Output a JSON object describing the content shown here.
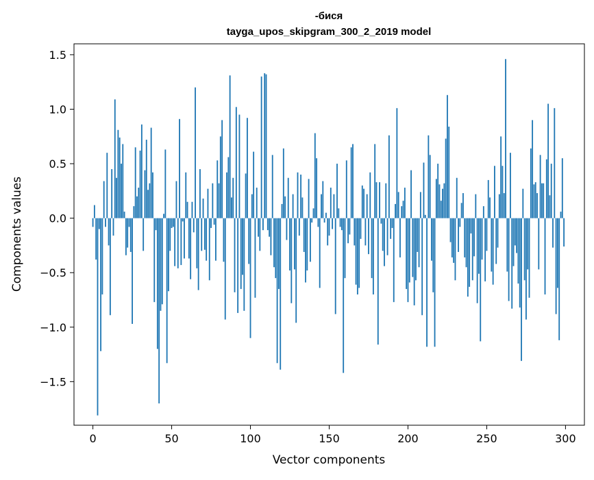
{
  "chart_data": {
    "type": "bar",
    "title_line1": "-бися",
    "title_line2": "tayga_upos_skipgram_300_2_2019 model",
    "xlabel": "Vector components",
    "ylabel": "Components values",
    "xlim": [
      -12,
      312
    ],
    "ylim": [
      -1.9,
      1.6
    ],
    "x_ticks": [
      0,
      50,
      100,
      150,
      200,
      250,
      300
    ],
    "x_tick_labels": [
      "0",
      "50",
      "100",
      "150",
      "200",
      "250",
      "300"
    ],
    "y_ticks": [
      -1.5,
      -1.0,
      -0.5,
      0.0,
      0.5,
      1.0,
      1.5
    ],
    "y_tick_labels": [
      "−1.5",
      "−1.0",
      "−0.5",
      "0.0",
      "0.5",
      "1.0",
      "1.5"
    ],
    "bar_color": "#1f77b4",
    "values": [
      -0.08,
      0.12,
      -0.38,
      -1.81,
      -0.1,
      -1.22,
      -0.7,
      0.34,
      -0.08,
      0.6,
      -0.25,
      -0.89,
      0.45,
      -0.16,
      1.09,
      0.37,
      0.81,
      0.74,
      0.5,
      0.68,
      0.06,
      -0.34,
      -0.27,
      -0.08,
      -0.31,
      -0.97,
      0.11,
      0.65,
      0.2,
      0.28,
      0.62,
      0.86,
      -0.3,
      0.44,
      0.72,
      0.26,
      0.32,
      0.83,
      0.42,
      -0.77,
      -0.11,
      -1.2,
      -1.7,
      -0.85,
      -0.79,
      0.04,
      0.63,
      -1.33,
      -0.67,
      -0.3,
      -0.09,
      -0.08,
      -0.44,
      0.34,
      -0.46,
      0.91,
      -0.43,
      -0.03,
      -0.37,
      0.42,
      0.15,
      -0.37,
      -0.56,
      0.15,
      -0.13,
      1.2,
      -0.46,
      -0.66,
      0.45,
      -0.3,
      0.18,
      -0.29,
      -0.39,
      0.27,
      -0.57,
      -0.09,
      0.32,
      -0.06,
      -0.39,
      0.53,
      0.32,
      0.75,
      0.9,
      -0.4,
      -0.93,
      0.42,
      0.56,
      1.31,
      0.19,
      0.37,
      -0.68,
      1.02,
      -0.87,
      0.95,
      -0.65,
      -0.52,
      -0.85,
      0.41,
      0.92,
      -0.42,
      -1.1,
      0.22,
      0.61,
      -0.73,
      0.28,
      -0.17,
      -0.3,
      1.3,
      -0.11,
      1.33,
      1.32,
      -0.11,
      -0.17,
      -0.34,
      0.58,
      -0.45,
      -0.55,
      -1.33,
      -0.65,
      -1.39,
      0.13,
      0.64,
      0.2,
      -0.2,
      0.37,
      -0.48,
      -0.78,
      0.22,
      -0.47,
      -0.96,
      0.42,
      -0.16,
      0.4,
      0.19,
      -0.31,
      -0.59,
      -0.48,
      0.36,
      -0.4,
      -0.04,
      0.09,
      0.78,
      0.55,
      -0.08,
      -0.64,
      0.22,
      0.34,
      -0.04,
      0.05,
      -0.25,
      -0.16,
      0.28,
      -0.1,
      0.22,
      -0.88,
      0.5,
      0.09,
      -0.08,
      -0.11,
      -1.42,
      -0.55,
      0.53,
      -0.23,
      -0.15,
      0.65,
      0.68,
      -0.25,
      -0.61,
      -0.7,
      -0.64,
      -0.19,
      0.3,
      0.27,
      -0.25,
      0.22,
      -0.33,
      0.42,
      -0.55,
      -0.7,
      0.68,
      0.33,
      -1.16,
      0.33,
      -0.05,
      -0.3,
      -0.44,
      0.32,
      -0.34,
      0.76,
      -0.19,
      -0.09,
      -0.77,
      0.13,
      1.01,
      0.24,
      -0.36,
      0.11,
      0.16,
      0.28,
      -0.65,
      -0.77,
      -0.59,
      0.44,
      -0.54,
      -0.8,
      -0.57,
      -0.31,
      -0.45,
      0.24,
      -0.89,
      0.51,
      0.03,
      -1.18,
      0.76,
      0.58,
      -0.39,
      -0.68,
      -1.18,
      0.36,
      0.5,
      0.31,
      0.16,
      0.27,
      0.32,
      0.73,
      1.13,
      0.84,
      -0.22,
      -0.36,
      -0.41,
      -0.57,
      0.37,
      -0.31,
      -0.08,
      0.14,
      0.23,
      -0.36,
      -0.45,
      -0.72,
      -0.63,
      -0.14,
      -0.57,
      -0.35,
      0.22,
      -0.78,
      -0.51,
      -1.13,
      -0.38,
      0.11,
      -0.58,
      -0.3,
      0.35,
      0.19,
      -0.49,
      -0.61,
      0.48,
      -0.42,
      -0.27,
      0.22,
      0.75,
      0.48,
      0.23,
      1.46,
      -0.49,
      -0.76,
      0.6,
      -0.83,
      -0.44,
      -0.25,
      -0.32,
      -0.6,
      -0.82,
      -1.31,
      0.27,
      -0.57,
      -0.93,
      -0.47,
      -0.73,
      0.64,
      0.9,
      0.31,
      0.33,
      0.23,
      -0.47,
      0.58,
      0.32,
      0.32,
      -0.7,
      0.54,
      1.05,
      0.21,
      0.5,
      -0.27,
      1.01,
      -0.88,
      -0.64,
      -1.12,
      0.06,
      0.55,
      -0.26
    ]
  }
}
